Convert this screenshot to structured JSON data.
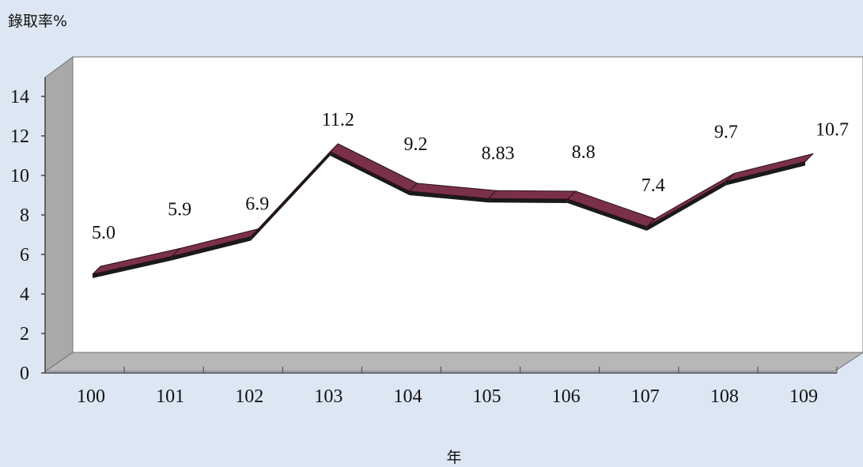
{
  "chart_data": {
    "type": "line",
    "title": "",
    "ylabel": "錄取率%",
    "xlabel": "年",
    "categories": [
      "100",
      "101",
      "102",
      "103",
      "104",
      "105",
      "106",
      "107",
      "108",
      "109"
    ],
    "series": [
      {
        "values": [
          5.0,
          5.9,
          6.9,
          11.2,
          9.2,
          8.83,
          8.8,
          7.4,
          9.7,
          10.7
        ],
        "labels": [
          "5.0",
          "5.9",
          "6.9",
          "11.2",
          "9.2",
          "8.83",
          "8.8",
          "7.4",
          "9.7",
          "10.7"
        ],
        "color": "#7a3148"
      }
    ],
    "yticks": [
      "0",
      "2",
      "4",
      "6",
      "8",
      "10",
      "12",
      "14"
    ],
    "ylim": [
      0,
      14
    ],
    "grid": false,
    "legend": "none",
    "style": "3d",
    "colors": {
      "background": "#dde7f4",
      "plot_area": "#ffffff",
      "wall": "#a9a9a9",
      "floor": "#b7b7b7",
      "line_top": "#7a3148",
      "line_side": "#1a1a1a"
    }
  }
}
